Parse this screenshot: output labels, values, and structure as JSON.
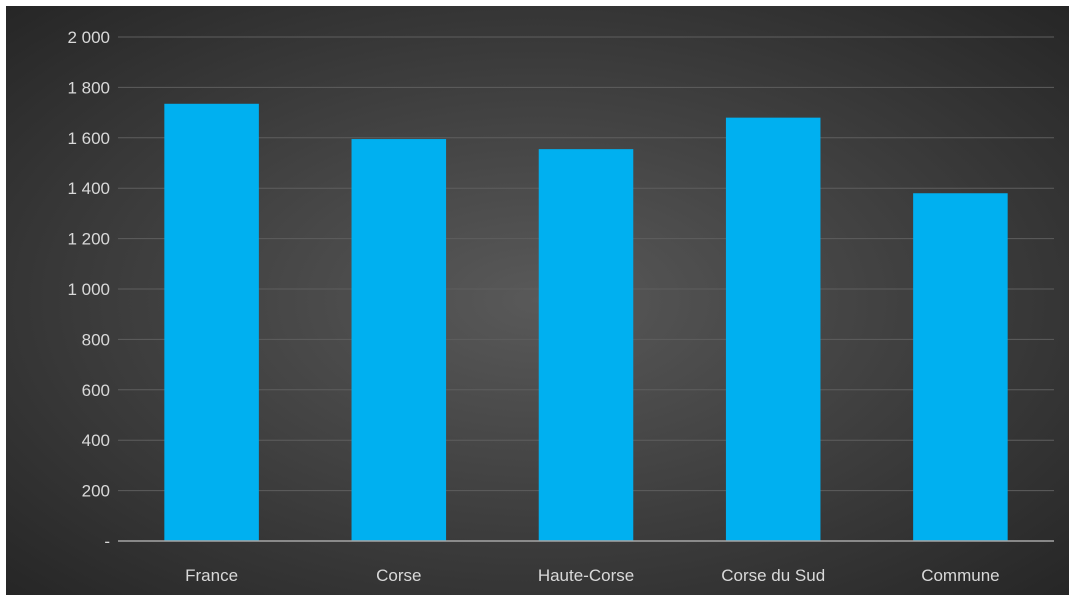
{
  "chart_data": {
    "type": "bar",
    "categories": [
      "France",
      "Corse",
      "Haute-Corse",
      "Corse du Sud",
      "Commune"
    ],
    "values": [
      1735,
      1595,
      1555,
      1680,
      1380
    ],
    "ylim": [
      0,
      2000
    ],
    "yticks": [
      0,
      200,
      400,
      600,
      800,
      1000,
      1200,
      1400,
      1600,
      1800,
      2000
    ],
    "ytick_labels": [
      "-",
      "200",
      "400",
      "600",
      "800",
      "1 000",
      "1 200",
      "1 400",
      "1 600",
      "1 800",
      "2 000"
    ],
    "grid": true,
    "bar_color": "#00b0f0",
    "background_color": "#404040"
  }
}
